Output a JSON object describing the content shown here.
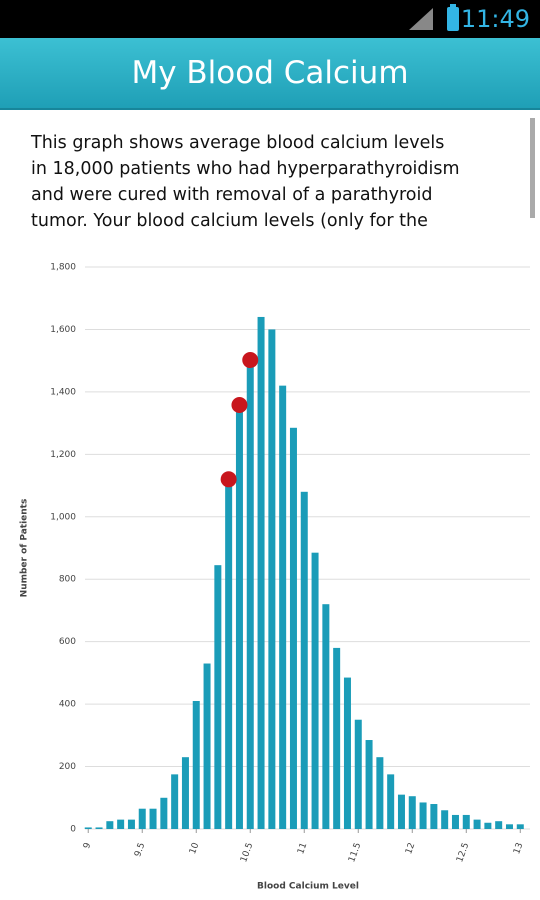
{
  "status_bar": {
    "time": "11:49"
  },
  "header": {
    "title": "My Blood Calcium"
  },
  "intro": {
    "lines": [
      "This graph shows average blood calcium levels",
      "in 18,000 patients who had hyperparathyroidism",
      "and were cured with removal of a parathyroid",
      "tumor. Your blood calcium levels (only for the"
    ]
  },
  "chart_data": {
    "type": "bar",
    "x_label": "Blood Calcium Level",
    "y_label": "Number of Patients",
    "x": [
      9.0,
      9.1,
      9.2,
      9.3,
      9.4,
      9.5,
      9.6,
      9.7,
      9.8,
      9.9,
      10.0,
      10.1,
      10.2,
      10.3,
      10.4,
      10.5,
      10.6,
      10.7,
      10.8,
      10.9,
      11.0,
      11.1,
      11.2,
      11.3,
      11.4,
      11.5,
      11.6,
      11.7,
      11.8,
      11.9,
      12.0,
      12.1,
      12.2,
      12.3,
      12.4,
      12.5,
      12.6,
      12.7,
      12.8,
      12.9,
      13.0
    ],
    "values": [
      5,
      5,
      25,
      30,
      30,
      65,
      65,
      100,
      175,
      230,
      410,
      530,
      845,
      1110,
      1340,
      1490,
      1640,
      1600,
      1420,
      1285,
      1080,
      885,
      720,
      580,
      485,
      350,
      285,
      230,
      175,
      110,
      105,
      85,
      80,
      60,
      45,
      45,
      30,
      20,
      25,
      15,
      15
    ],
    "color": "#1a9cb8",
    "overlay": {
      "type": "scatter",
      "x": [
        10.3,
        10.4,
        10.5
      ],
      "values": [
        1120,
        1358,
        1502
      ],
      "color": "#c8161d"
    },
    "xlim": [
      8.97,
      13.09
    ],
    "ylim": [
      0,
      1800
    ],
    "xticks": [
      9,
      9.5,
      10,
      10.5,
      11,
      11.5,
      12,
      12.5,
      13
    ],
    "yticks": [
      0,
      200,
      400,
      600,
      800,
      {
        "value": 1000,
        "label": "1,000"
      },
      {
        "value": 1200,
        "label": "1,200"
      },
      {
        "value": 1400,
        "label": "1,400"
      },
      {
        "value": 1600,
        "label": "1,600"
      },
      {
        "value": 1800,
        "label": "1,800"
      }
    ],
    "grid": true
  }
}
